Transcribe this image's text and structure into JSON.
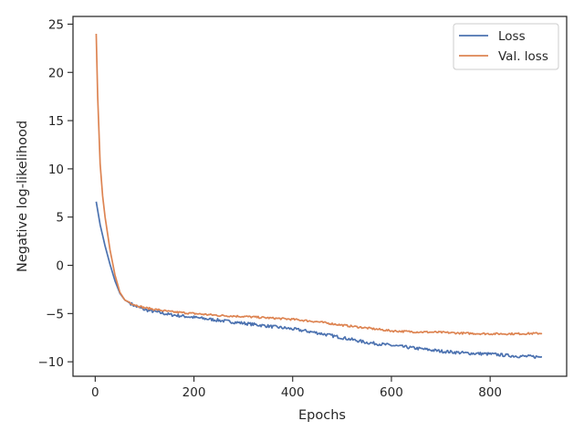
{
  "chart_data": {
    "type": "line",
    "title": "",
    "xlabel": "Epochs",
    "ylabel": "Negative log-likelihood",
    "xlim": [
      -45,
      955
    ],
    "ylim": [
      -11.5,
      25.8
    ],
    "xticks": [
      0,
      200,
      400,
      600,
      800
    ],
    "yticks": [
      25,
      20,
      15,
      10,
      5,
      0,
      -5,
      -10
    ],
    "xtick_labels": [
      "0",
      "200",
      "400",
      "600",
      "800"
    ],
    "ytick_labels": [
      "25",
      "20",
      "15",
      "10",
      "5",
      "0",
      "−5",
      "−10"
    ],
    "grid": false,
    "legend_position": "top-right",
    "series": [
      {
        "name": "Loss",
        "color": "#4c72b0",
        "x": [
          2,
          10,
          20,
          30,
          40,
          50,
          60,
          80,
          100,
          150,
          200,
          250,
          300,
          350,
          400,
          450,
          500,
          550,
          600,
          650,
          700,
          750,
          800,
          850,
          905
        ],
        "y": [
          6.6,
          4.2,
          2.0,
          0.1,
          -1.6,
          -2.9,
          -3.6,
          -4.2,
          -4.6,
          -5.1,
          -5.4,
          -5.7,
          -6.0,
          -6.3,
          -6.6,
          -7.0,
          -7.5,
          -8.0,
          -8.3,
          -8.6,
          -8.9,
          -9.1,
          -9.2,
          -9.4,
          -9.5
        ]
      },
      {
        "name": "Val. loss",
        "color": "#dd8452",
        "x": [
          2,
          5,
          10,
          15,
          20,
          30,
          40,
          50,
          60,
          80,
          100,
          150,
          200,
          250,
          300,
          350,
          400,
          450,
          500,
          550,
          600,
          650,
          700,
          750,
          800,
          850,
          905
        ],
        "y": [
          24.0,
          17.5,
          10.5,
          7.2,
          5.0,
          1.6,
          -1.0,
          -2.8,
          -3.6,
          -4.1,
          -4.4,
          -4.8,
          -5.0,
          -5.2,
          -5.3,
          -5.45,
          -5.6,
          -5.85,
          -6.2,
          -6.5,
          -6.8,
          -6.9,
          -6.95,
          -7.05,
          -7.1,
          -7.1,
          -7.05
        ]
      }
    ]
  }
}
